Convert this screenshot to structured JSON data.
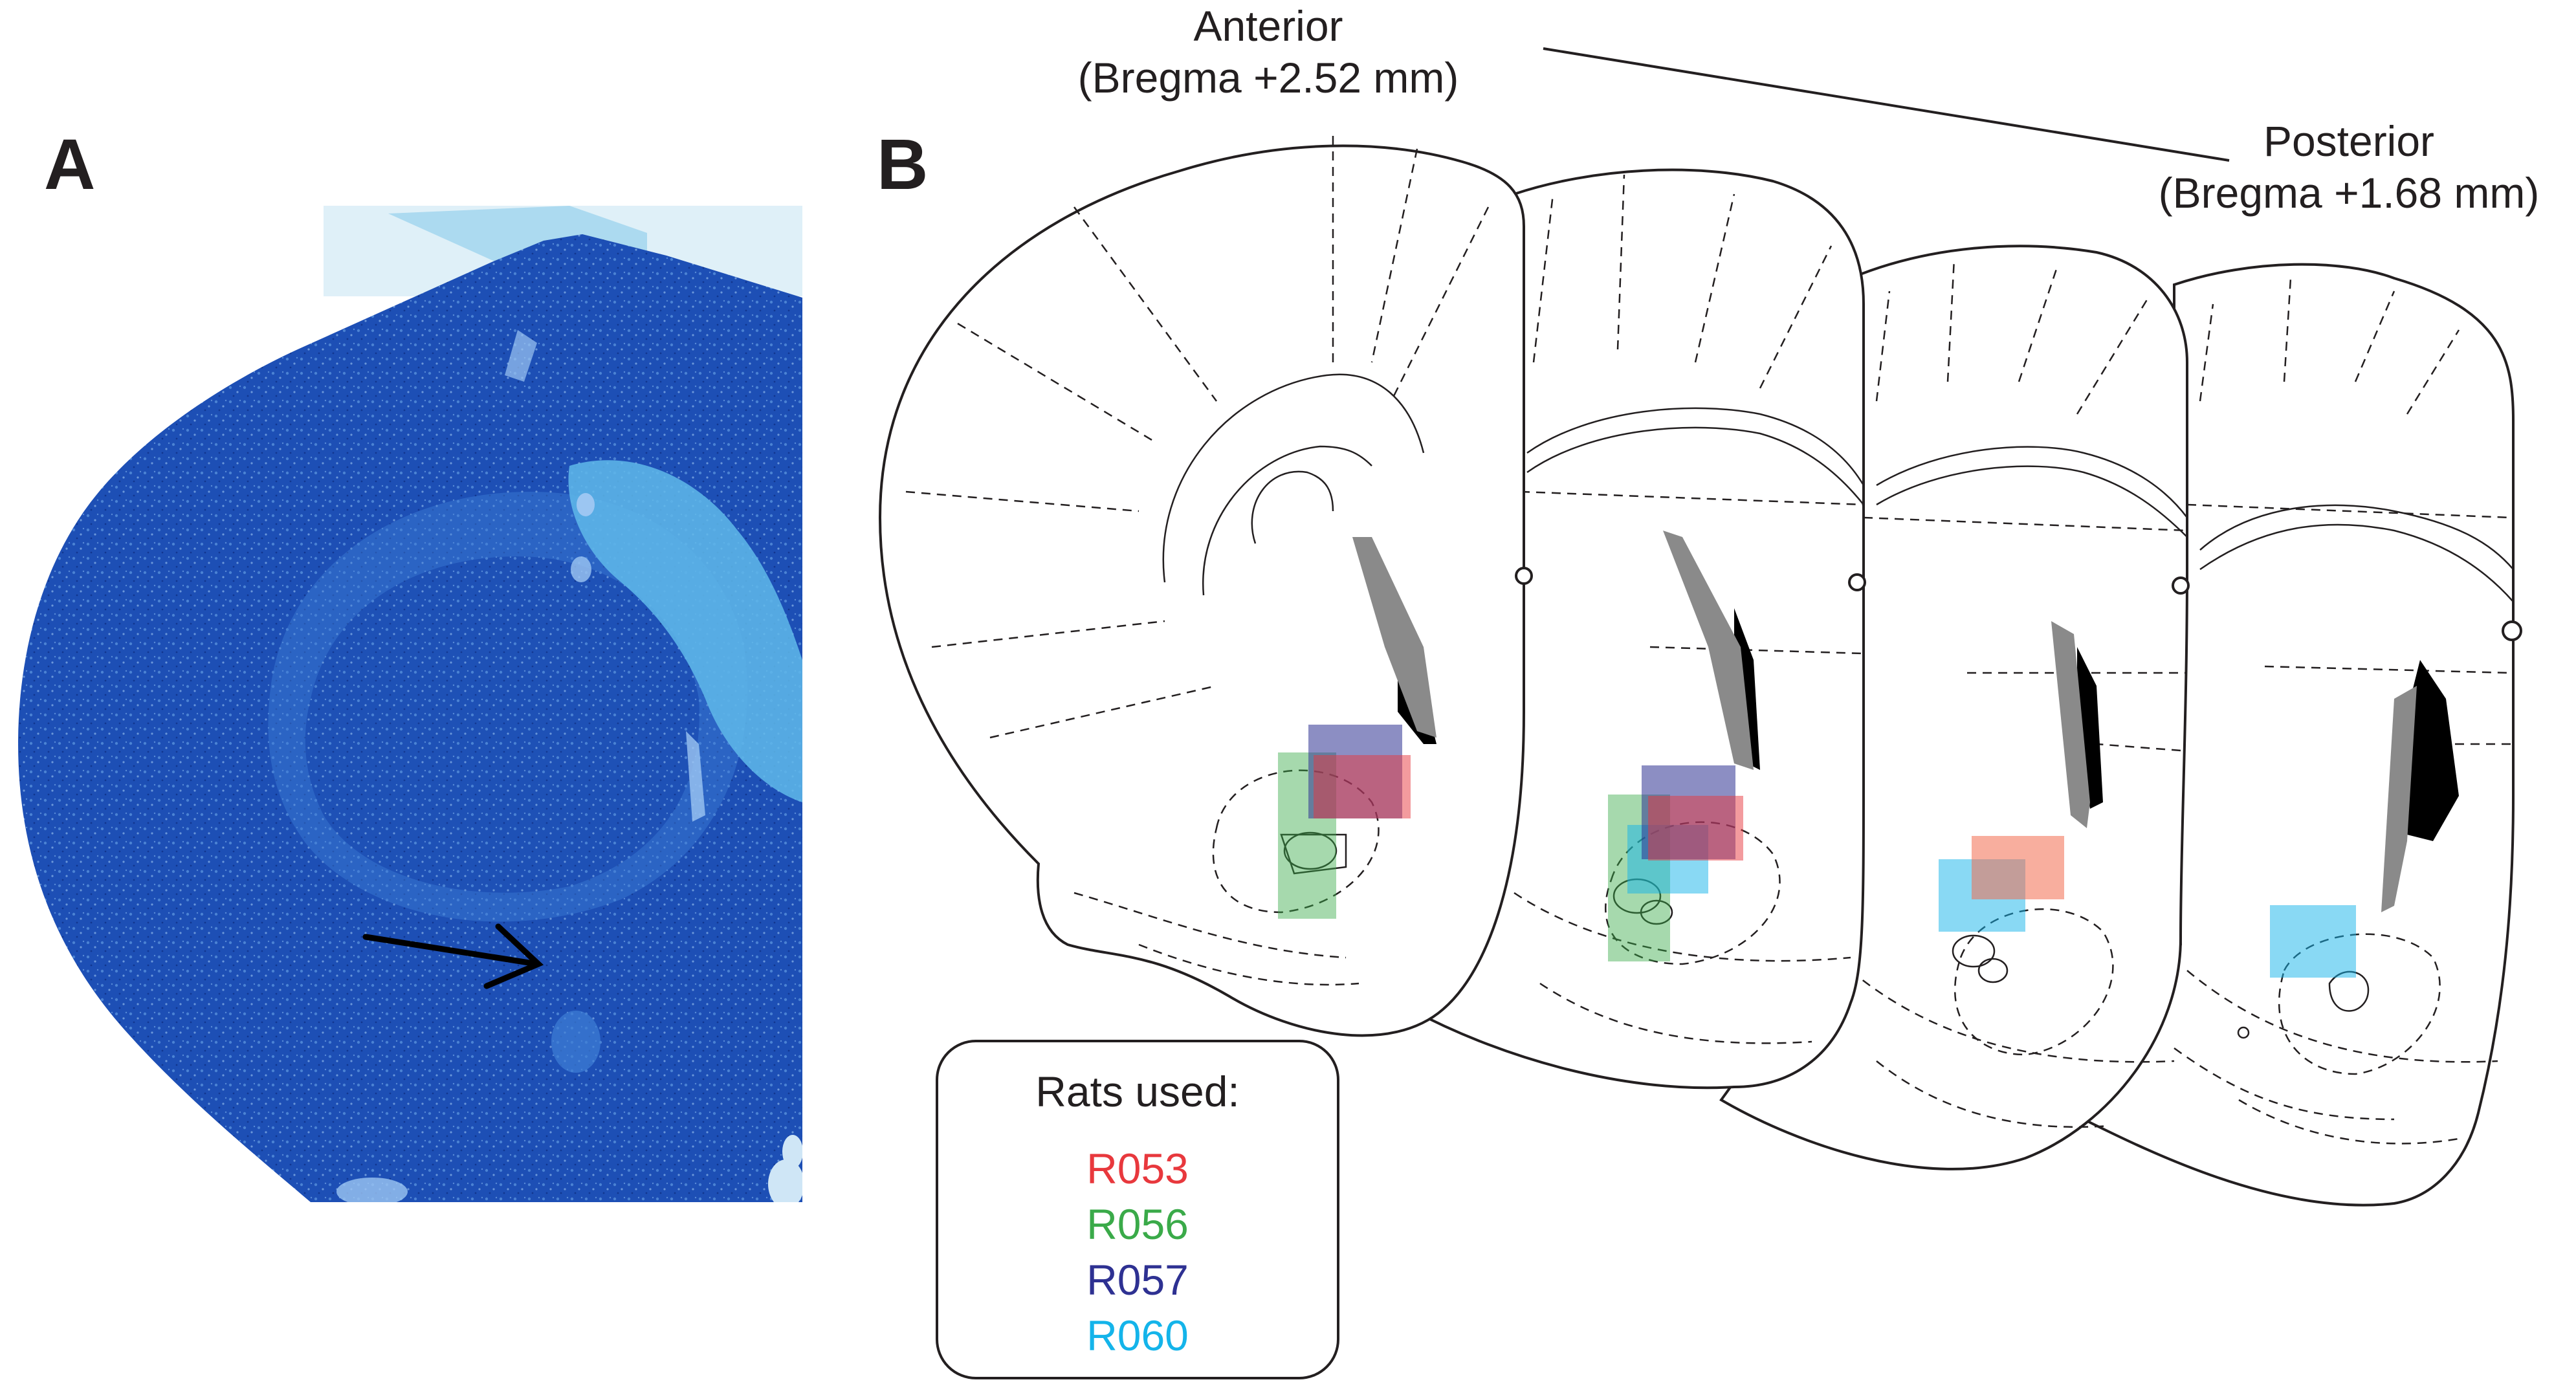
{
  "panels": {
    "a": {
      "letter": "A"
    },
    "b": {
      "letter": "B"
    }
  },
  "captions": {
    "anterior": {
      "line1": "Anterior",
      "line2": "(Bregma +2.52 mm)"
    },
    "posterior": {
      "line1": "Posterior",
      "line2": "(Bregma +1.68 mm)"
    }
  },
  "legend": {
    "title": "Rats used:",
    "rats": [
      {
        "label": "R053",
        "color": "#e8383d"
      },
      {
        "label": "R056",
        "color": "#3aaa49"
      },
      {
        "label": "R057",
        "color": "#2e3192"
      },
      {
        "label": "R060",
        "color": "#14b4ea"
      }
    ]
  },
  "lesion_patch_colors": {
    "red": "#f26b4f",
    "green": "#8ccc7e",
    "purple": "#6e6cb5",
    "blue": "#5ec8f0"
  },
  "histology": {
    "background": "#1d4fb5",
    "highlight": "#5fb9ea"
  },
  "marker": {
    "name": "arrow-icon"
  }
}
